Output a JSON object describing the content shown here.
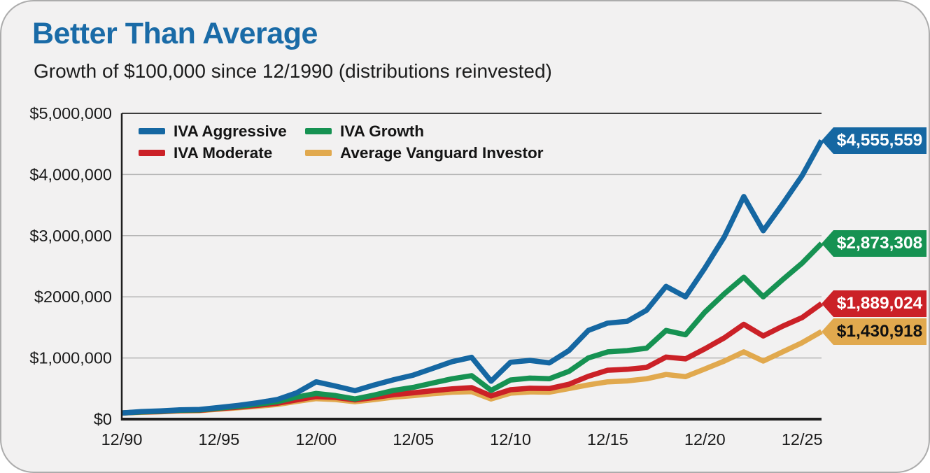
{
  "card": {
    "title": "Better Than Average",
    "subtitle": "Growth of $100,000 since 12/1990 (distributions reinvested)"
  },
  "colors": {
    "title": "#1a6ba7",
    "card_bg": "#f2f1f1",
    "grid": "#b5b5b5",
    "plot_top": "#3d3d3d",
    "axis": "#1f1f1f",
    "tick_text": "#1a1a1a",
    "aggressive": "#1567a2",
    "growth": "#169252",
    "moderate": "#cb2127",
    "average": "#e1a94e"
  },
  "chart_data": {
    "type": "line",
    "title": "Better Than Average",
    "subtitle": "Growth of $100,000 since 12/1990 (distributions reinvested)",
    "ylim": [
      0,
      5000000
    ],
    "grid": "horizontal",
    "legend_position": "top-left",
    "x_tick_labels": [
      "12/90",
      "12/95",
      "12/00",
      "12/05",
      "12/10",
      "12/15",
      "12/20",
      "12/25"
    ],
    "x_tick_indices": [
      0,
      5,
      10,
      15,
      20,
      25,
      30,
      35
    ],
    "y_tick_labels": [
      "$0",
      "$1,000,000",
      "$2000,000",
      "$3,000,000",
      "$4,000,000",
      "$5,000,000"
    ],
    "y_tick_values": [
      0,
      1000000,
      2000000,
      3000000,
      4000000,
      5000000
    ],
    "x_years": [
      1990,
      1991,
      1992,
      1993,
      1994,
      1995,
      1996,
      1997,
      1998,
      1999,
      2000,
      2001,
      2002,
      2003,
      2004,
      2005,
      2006,
      2007,
      2008,
      2009,
      2010,
      2011,
      2012,
      2013,
      2014,
      2015,
      2016,
      2017,
      2018,
      2019,
      2020,
      2021,
      2022,
      2023,
      2024,
      2025,
      2026
    ],
    "legend": [
      {
        "label": "IVA Aggressive",
        "color_key": "aggressive"
      },
      {
        "label": "IVA Growth",
        "color_key": "growth"
      },
      {
        "label": "IVA Moderate",
        "color_key": "moderate"
      },
      {
        "label": "Average Vanguard Investor",
        "color_key": "average"
      }
    ],
    "series": [
      {
        "name": "Average Vanguard Investor",
        "color_key": "average",
        "end_label": "$1,430,918",
        "end_value": 1430918,
        "tag_text": "dark",
        "values": [
          100000,
          112000,
          120000,
          135000,
          138000,
          162000,
          185000,
          210000,
          240000,
          290000,
          335000,
          320000,
          285000,
          320000,
          360000,
          385000,
          415000,
          440000,
          450000,
          330000,
          425000,
          445000,
          440000,
          500000,
          560000,
          610000,
          625000,
          660000,
          730000,
          695000,
          820000,
          950000,
          1100000,
          950000,
          1100000,
          1250000,
          1430918
        ]
      },
      {
        "name": "IVA Moderate",
        "color_key": "moderate",
        "end_label": "$1,889,024",
        "end_value": 1889024,
        "tag_text": "light",
        "values": [
          100000,
          115000,
          124000,
          140000,
          144000,
          172000,
          196000,
          225000,
          260000,
          315000,
          370000,
          355000,
          315000,
          355000,
          400000,
          430000,
          465000,
          495000,
          515000,
          380000,
          480000,
          505000,
          500000,
          570000,
          700000,
          800000,
          815000,
          845000,
          1015000,
          985000,
          1150000,
          1330000,
          1550000,
          1360000,
          1520000,
          1660000,
          1889024
        ]
      },
      {
        "name": "IVA Growth",
        "color_key": "growth",
        "end_label": "$2,873,308",
        "end_value": 2873308,
        "tag_text": "light",
        "values": [
          100000,
          118000,
          128000,
          145000,
          150000,
          180000,
          208000,
          242000,
          285000,
          360000,
          420000,
          385000,
          330000,
          395000,
          470000,
          520000,
          590000,
          660000,
          710000,
          470000,
          640000,
          670000,
          660000,
          780000,
          1000000,
          1100000,
          1120000,
          1160000,
          1450000,
          1380000,
          1750000,
          2050000,
          2320000,
          2000000,
          2280000,
          2550000,
          2873308
        ]
      },
      {
        "name": "IVA Aggressive",
        "color_key": "aggressive",
        "end_label": "$4,555,559",
        "end_value": 4555559,
        "tag_text": "light",
        "values": [
          100000,
          122000,
          134000,
          152000,
          158000,
          190000,
          225000,
          268000,
          320000,
          430000,
          610000,
          540000,
          465000,
          560000,
          645000,
          720000,
          830000,
          940000,
          1010000,
          620000,
          930000,
          960000,
          920000,
          1120000,
          1450000,
          1570000,
          1600000,
          1780000,
          2170000,
          2000000,
          2470000,
          2980000,
          3640000,
          3080000,
          3520000,
          3980000,
          4555559
        ]
      }
    ]
  }
}
